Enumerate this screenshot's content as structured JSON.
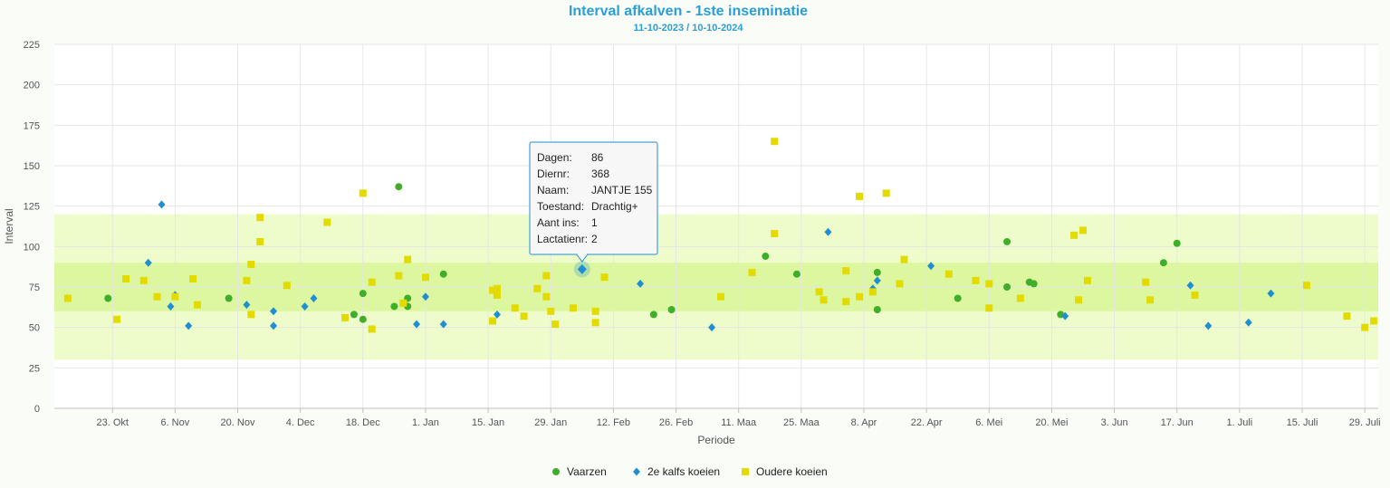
{
  "chart_data": {
    "type": "scatter",
    "title": "Interval afkalven - 1ste inseminatie",
    "subtitle": "11-10-2023 / 10-10-2024",
    "xlabel": "Periode",
    "ylabel": "Interval",
    "x_start": "2023-10-10",
    "x_end": "2024-08-01",
    "ylim": [
      0,
      225
    ],
    "yticks": [
      0,
      25,
      50,
      75,
      100,
      125,
      150,
      175,
      200,
      225
    ],
    "xticks": [
      {
        "label": "23. Okt",
        "date": "2023-10-23"
      },
      {
        "label": "6. Nov",
        "date": "2023-11-06"
      },
      {
        "label": "20. Nov",
        "date": "2023-11-20"
      },
      {
        "label": "4. Dec",
        "date": "2023-12-04"
      },
      {
        "label": "18. Dec",
        "date": "2023-12-18"
      },
      {
        "label": "1. Jan",
        "date": "2024-01-01"
      },
      {
        "label": "15. Jan",
        "date": "2024-01-15"
      },
      {
        "label": "29. Jan",
        "date": "2024-01-29"
      },
      {
        "label": "12. Feb",
        "date": "2024-02-12"
      },
      {
        "label": "26. Feb",
        "date": "2024-02-26"
      },
      {
        "label": "11. Maa",
        "date": "2024-03-11"
      },
      {
        "label": "25. Maa",
        "date": "2024-03-25"
      },
      {
        "label": "8. Apr",
        "date": "2024-04-08"
      },
      {
        "label": "22. Apr",
        "date": "2024-04-22"
      },
      {
        "label": "6. Mei",
        "date": "2024-05-06"
      },
      {
        "label": "20. Mei",
        "date": "2024-05-20"
      },
      {
        "label": "3. Jun",
        "date": "2024-06-03"
      },
      {
        "label": "17. Jun",
        "date": "2024-06-17"
      },
      {
        "label": "1. Juli",
        "date": "2024-07-01"
      },
      {
        "label": "15. Juli",
        "date": "2024-07-15"
      },
      {
        "label": "29. Juli",
        "date": "2024-07-29"
      }
    ],
    "bands": [
      {
        "from": 30,
        "to": 120,
        "color": "#eefccb"
      },
      {
        "from": 60,
        "to": 90,
        "color": "#dcf7a0"
      }
    ],
    "grid": true,
    "legend_position": "bottom-center",
    "series": [
      {
        "name": "Vaarzen",
        "marker": "circle",
        "color": "#3fae2a",
        "points": [
          [
            "2023-10-22",
            68
          ],
          [
            "2023-11-18",
            68
          ],
          [
            "2023-12-16",
            58
          ],
          [
            "2023-12-18",
            71
          ],
          [
            "2023-12-18",
            55
          ],
          [
            "2023-12-25",
            63
          ],
          [
            "2023-12-26",
            137
          ],
          [
            "2023-12-28",
            68
          ],
          [
            "2023-12-28",
            63
          ],
          [
            "2024-01-05",
            83
          ],
          [
            "2024-02-21",
            58
          ],
          [
            "2024-02-25",
            61
          ],
          [
            "2024-03-17",
            94
          ],
          [
            "2024-03-24",
            83
          ],
          [
            "2024-04-11",
            84
          ],
          [
            "2024-04-11",
            61
          ],
          [
            "2024-04-29",
            68
          ],
          [
            "2024-05-10",
            103
          ],
          [
            "2024-05-10",
            75
          ],
          [
            "2024-05-15",
            78
          ],
          [
            "2024-05-16",
            77
          ],
          [
            "2024-05-22",
            58
          ],
          [
            "2024-06-14",
            90
          ],
          [
            "2024-06-17",
            102
          ]
        ]
      },
      {
        "name": "2e kalfs koeien",
        "marker": "diamond",
        "color": "#1f8fd2",
        "points": [
          [
            "2023-10-31",
            90
          ],
          [
            "2023-11-03",
            126
          ],
          [
            "2023-11-05",
            63
          ],
          [
            "2023-11-06",
            70
          ],
          [
            "2023-11-09",
            51
          ],
          [
            "2023-11-22",
            64
          ],
          [
            "2023-11-28",
            60
          ],
          [
            "2023-11-28",
            51
          ],
          [
            "2023-12-05",
            63
          ],
          [
            "2023-12-07",
            68
          ],
          [
            "2023-12-30",
            52
          ],
          [
            "2024-01-01",
            69
          ],
          [
            "2024-01-05",
            52
          ],
          [
            "2024-01-17",
            58
          ],
          [
            "2024-02-05",
            86
          ],
          [
            "2024-02-18",
            77
          ],
          [
            "2024-03-05",
            50
          ],
          [
            "2024-03-31",
            109
          ],
          [
            "2024-04-10",
            74
          ],
          [
            "2024-04-11",
            79
          ],
          [
            "2024-04-23",
            88
          ],
          [
            "2024-05-23",
            57
          ],
          [
            "2024-06-20",
            76
          ],
          [
            "2024-06-24",
            51
          ],
          [
            "2024-07-03",
            53
          ],
          [
            "2024-07-08",
            71
          ]
        ]
      },
      {
        "name": "Oudere koeien",
        "marker": "square",
        "color": "#e3db00",
        "points": [
          [
            "2023-10-13",
            68
          ],
          [
            "2023-10-24",
            55
          ],
          [
            "2023-10-26",
            80
          ],
          [
            "2023-10-30",
            79
          ],
          [
            "2023-11-02",
            69
          ],
          [
            "2023-11-06",
            69
          ],
          [
            "2023-11-10",
            80
          ],
          [
            "2023-11-11",
            64
          ],
          [
            "2023-11-22",
            79
          ],
          [
            "2023-11-23",
            89
          ],
          [
            "2023-11-23",
            58
          ],
          [
            "2023-11-25",
            118
          ],
          [
            "2023-11-25",
            103
          ],
          [
            "2023-12-01",
            76
          ],
          [
            "2023-12-10",
            115
          ],
          [
            "2023-12-14",
            56
          ],
          [
            "2023-12-18",
            133
          ],
          [
            "2023-12-20",
            49
          ],
          [
            "2023-12-20",
            78
          ],
          [
            "2023-12-26",
            82
          ],
          [
            "2023-12-27",
            65
          ],
          [
            "2023-12-28",
            92
          ],
          [
            "2024-01-01",
            81
          ],
          [
            "2024-01-16",
            73
          ],
          [
            "2024-01-16",
            54
          ],
          [
            "2024-01-17",
            74
          ],
          [
            "2024-01-17",
            70
          ],
          [
            "2024-01-21",
            62
          ],
          [
            "2024-01-23",
            57
          ],
          [
            "2024-01-26",
            74
          ],
          [
            "2024-01-28",
            82
          ],
          [
            "2024-01-28",
            69
          ],
          [
            "2024-01-29",
            60
          ],
          [
            "2024-01-30",
            52
          ],
          [
            "2024-02-03",
            62
          ],
          [
            "2024-02-08",
            53
          ],
          [
            "2024-02-08",
            60
          ],
          [
            "2024-02-10",
            81
          ],
          [
            "2024-03-07",
            69
          ],
          [
            "2024-03-14",
            84
          ],
          [
            "2024-03-19",
            165
          ],
          [
            "2024-03-19",
            108
          ],
          [
            "2024-03-29",
            72
          ],
          [
            "2024-03-30",
            67
          ],
          [
            "2024-04-04",
            85
          ],
          [
            "2024-04-04",
            66
          ],
          [
            "2024-04-07",
            131
          ],
          [
            "2024-04-07",
            69
          ],
          [
            "2024-04-10",
            72
          ],
          [
            "2024-04-13",
            133
          ],
          [
            "2024-04-16",
            77
          ],
          [
            "2024-04-17",
            92
          ],
          [
            "2024-04-27",
            83
          ],
          [
            "2024-05-03",
            79
          ],
          [
            "2024-05-06",
            77
          ],
          [
            "2024-05-06",
            62
          ],
          [
            "2024-05-13",
            68
          ],
          [
            "2024-05-25",
            107
          ],
          [
            "2024-05-26",
            67
          ],
          [
            "2024-05-27",
            110
          ],
          [
            "2024-05-28",
            79
          ],
          [
            "2024-06-10",
            78
          ],
          [
            "2024-06-11",
            67
          ],
          [
            "2024-06-21",
            70
          ],
          [
            "2024-07-16",
            76
          ],
          [
            "2024-07-25",
            57
          ],
          [
            "2024-07-29",
            50
          ],
          [
            "2024-07-31",
            54
          ]
        ]
      }
    ],
    "tooltip": {
      "series": "2e kalfs koeien",
      "point": [
        "2024-02-05",
        86
      ],
      "rows": [
        {
          "label": "Dagen:",
          "value": "86"
        },
        {
          "label": "Diernr:",
          "value": "368"
        },
        {
          "label": "Naam:",
          "value": "JANTJE 155"
        },
        {
          "label": "Toestand:",
          "value": "Drachtig+"
        },
        {
          "label": "Aant ins:",
          "value": "1"
        },
        {
          "label": "Lactatienr:",
          "value": "2"
        }
      ]
    }
  }
}
